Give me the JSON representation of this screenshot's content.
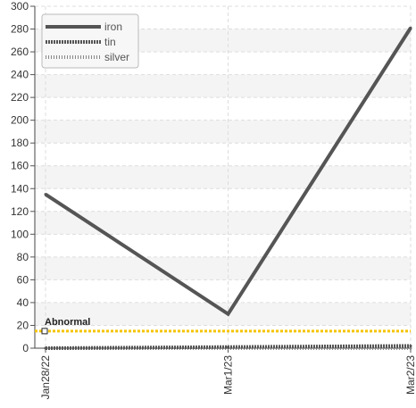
{
  "chart_data": {
    "type": "line",
    "categories": [
      "Jan28/22",
      "Mar1/23",
      "Mar2/23"
    ],
    "series": [
      {
        "name": "iron",
        "values": [
          135,
          30,
          281
        ],
        "color": "#555555",
        "style": "solid"
      },
      {
        "name": "tin",
        "values": [
          0,
          1,
          2
        ],
        "color": "#555555",
        "style": "dense-dashed"
      },
      {
        "name": "silver",
        "values": [
          0,
          0,
          0
        ],
        "color": "#888888",
        "style": "dotted"
      }
    ],
    "threshold": {
      "label": "Abnormal",
      "value": 15,
      "color": "#f5c400"
    },
    "ylim": [
      0,
      300
    ],
    "yticks": [
      0,
      20,
      40,
      60,
      80,
      100,
      120,
      140,
      160,
      180,
      200,
      220,
      240,
      260,
      280,
      300
    ],
    "grid": true,
    "legend_position": "top-left",
    "title": "",
    "xlabel": "",
    "ylabel": ""
  }
}
